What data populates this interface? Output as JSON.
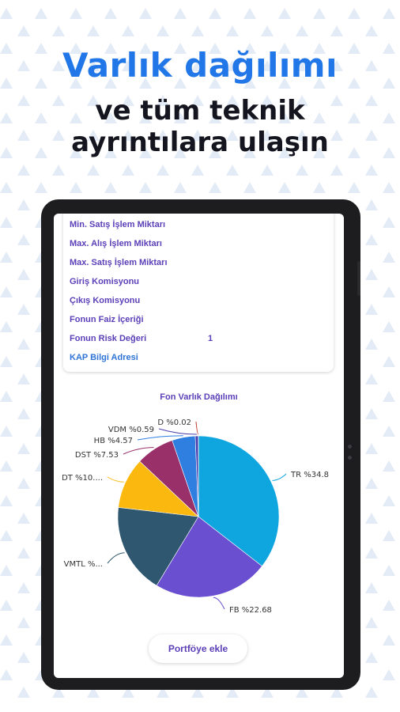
{
  "header": {
    "title": "Varlık dağılımı",
    "subtitle_line1": "ve tüm teknik",
    "subtitle_line2": "ayrıntılara ulaşın"
  },
  "info_rows": [
    {
      "label": "Min. Satış İşlem Miktarı",
      "value": ""
    },
    {
      "label": "Max. Alış İşlem Miktarı",
      "value": ""
    },
    {
      "label": "Max. Satış İşlem Miktarı",
      "value": ""
    },
    {
      "label": "Giriş Komisyonu",
      "value": ""
    },
    {
      "label": "Çıkış Komisyonu",
      "value": ""
    },
    {
      "label": "Fonun Faiz İçeriği",
      "value": ""
    },
    {
      "label": "Fonun Risk Değeri",
      "value": "1"
    }
  ],
  "kap_link": "KAP Bilgi Adresi",
  "chart_data": {
    "type": "pie",
    "title": "Fon Varlık Dağılımı",
    "slices": [
      {
        "label": "TR %34.8",
        "value": 34.8,
        "color": "#0fa6e0"
      },
      {
        "label": "FB %22.68",
        "value": 22.68,
        "color": "#6a4fd0"
      },
      {
        "label": "VMTL %...",
        "value": 17.76,
        "color": "#2f5870"
      },
      {
        "label": "DT %10....",
        "value": 10.0,
        "color": "#fbb90f"
      },
      {
        "label": "DST %7.53",
        "value": 7.53,
        "color": "#99306a"
      },
      {
        "label": "HB %4.57",
        "value": 4.57,
        "color": "#2f7fe0"
      },
      {
        "label": "VDM %0.59",
        "value": 0.59,
        "color": "#4a3fae"
      },
      {
        "label": "D %0.02",
        "value": 0.02,
        "color": "#c0392b"
      }
    ]
  },
  "portfolio_button": "Portföye ekle",
  "colors": {
    "accent_blue": "#2176e8",
    "label_purple": "#5b3fb8",
    "pattern": "#d8e4f3"
  }
}
